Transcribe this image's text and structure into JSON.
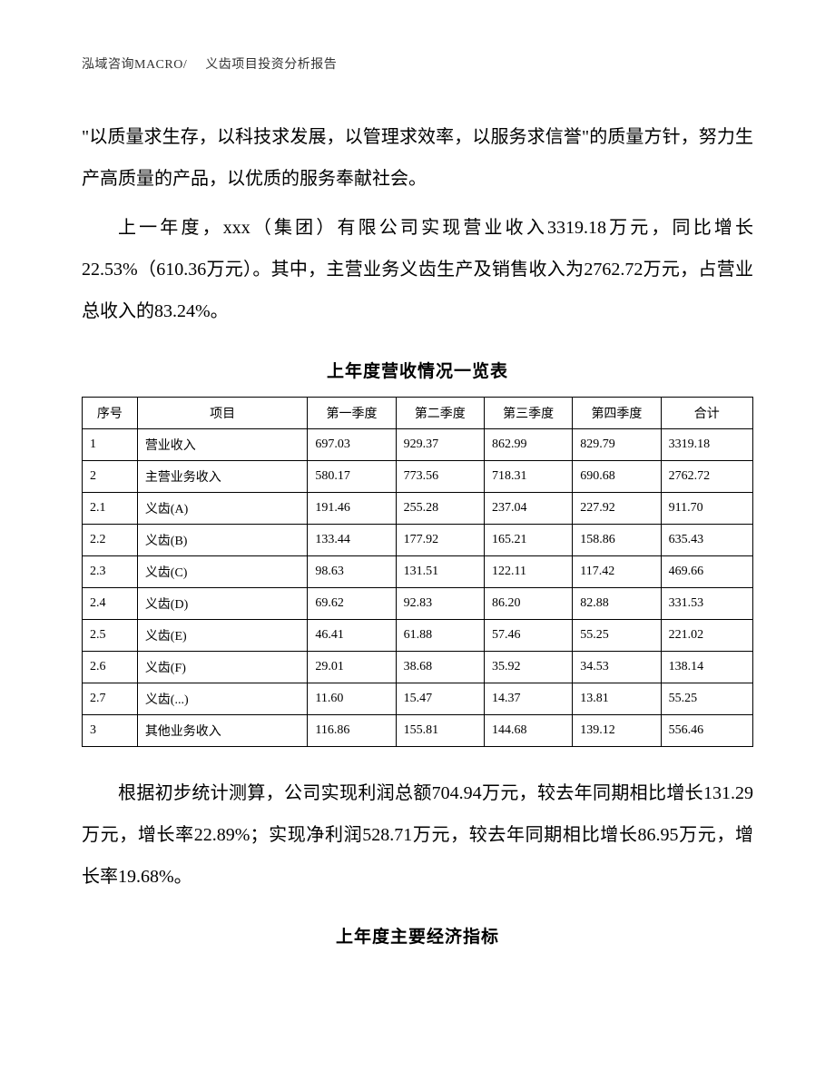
{
  "header": {
    "left": "泓域咨询MACRO/",
    "right": "义齿项目投资分析报告"
  },
  "paragraphs": {
    "p1": "\"以质量求生存，以科技求发展，以管理求效率，以服务求信誉\"的质量方针，努力生产高质量的产品，以优质的服务奉献社会。",
    "p2": "上一年度，xxx（集团）有限公司实现营业收入3319.18万元，同比增长22.53%（610.36万元）。其中，主营业务义齿生产及销售收入为2762.72万元，占营业总收入的83.24%。",
    "p3": "根据初步统计测算，公司实现利润总额704.94万元，较去年同期相比增长131.29万元，增长率22.89%；实现净利润528.71万元，较去年同期相比增长86.95万元，增长率19.68%。"
  },
  "table1": {
    "title": "上年度营收情况一览表",
    "columns": [
      "序号",
      "项目",
      "第一季度",
      "第二季度",
      "第三季度",
      "第四季度",
      "合计"
    ],
    "rows": [
      [
        "1",
        "营业收入",
        "697.03",
        "929.37",
        "862.99",
        "829.79",
        "3319.18"
      ],
      [
        "2",
        "主营业务收入",
        "580.17",
        "773.56",
        "718.31",
        "690.68",
        "2762.72"
      ],
      [
        "2.1",
        "义齿(A)",
        "191.46",
        "255.28",
        "237.04",
        "227.92",
        "911.70"
      ],
      [
        "2.2",
        "义齿(B)",
        "133.44",
        "177.92",
        "165.21",
        "158.86",
        "635.43"
      ],
      [
        "2.3",
        "义齿(C)",
        "98.63",
        "131.51",
        "122.11",
        "117.42",
        "469.66"
      ],
      [
        "2.4",
        "义齿(D)",
        "69.62",
        "92.83",
        "86.20",
        "82.88",
        "331.53"
      ],
      [
        "2.5",
        "义齿(E)",
        "46.41",
        "61.88",
        "57.46",
        "55.25",
        "221.02"
      ],
      [
        "2.6",
        "义齿(F)",
        "29.01",
        "38.68",
        "35.92",
        "34.53",
        "138.14"
      ],
      [
        "2.7",
        "义齿(...)",
        "11.60",
        "15.47",
        "14.37",
        "13.81",
        "55.25"
      ],
      [
        "3",
        "其他业务收入",
        "116.86",
        "155.81",
        "144.68",
        "139.12",
        "556.46"
      ]
    ]
  },
  "section2_title": "上年度主要经济指标"
}
